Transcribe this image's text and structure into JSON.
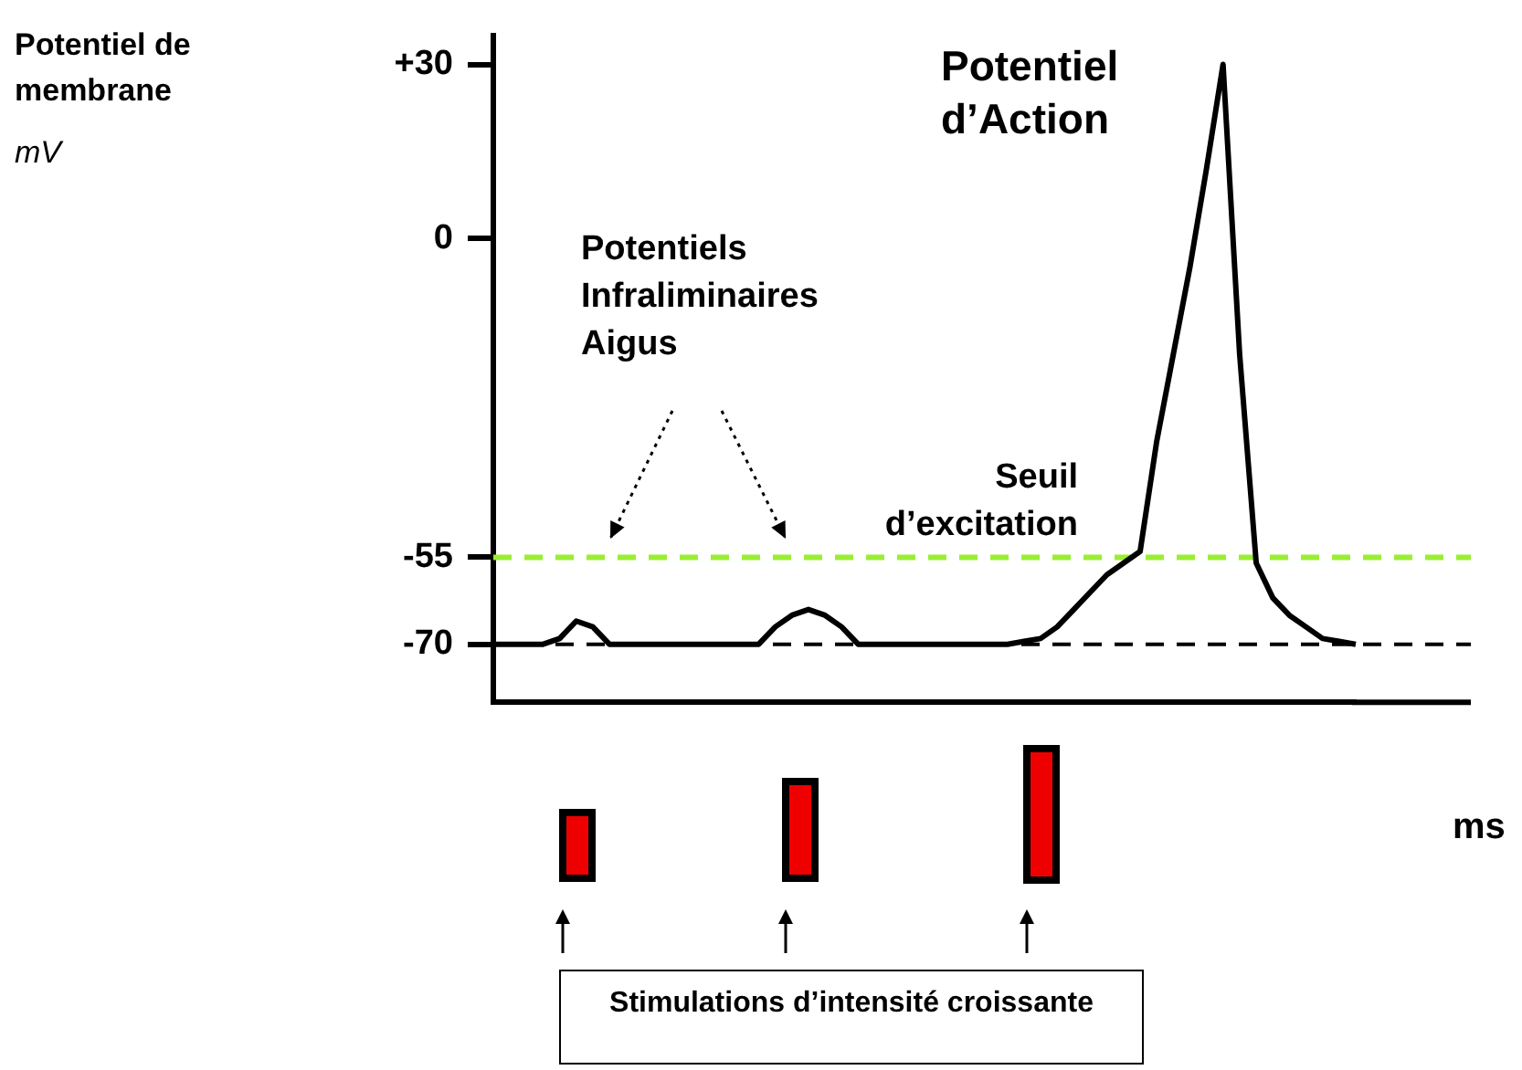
{
  "chart_data": {
    "type": "line",
    "categories": [
      null,
      null,
      null,
      null,
      null,
      null,
      null,
      null,
      null,
      null,
      null,
      null,
      null,
      null,
      null,
      null,
      null,
      null,
      null,
      null,
      null,
      null,
      null,
      null,
      null,
      null,
      null,
      null,
      null,
      null,
      null,
      null,
      null,
      null,
      null,
      null,
      null,
      null,
      null,
      null,
      null,
      null,
      null,
      null,
      null,
      null,
      null,
      null,
      null,
      null,
      null,
      null,
      null
    ],
    "series": [
      {
        "color": "#000000",
        "values": [
          -70,
          -70,
          -70,
          -70,
          -69,
          -66,
          -67,
          -70,
          -70,
          -70,
          -70,
          -70,
          -70,
          -70,
          -70,
          -70,
          -70,
          -67,
          -65,
          -64,
          -65,
          -67,
          -70,
          -70,
          -70,
          -70,
          -70,
          -70,
          -70,
          -70,
          -70,
          -70,
          -69.5,
          -69,
          -67,
          -64,
          -61,
          -58,
          -56,
          -54,
          -35,
          -20,
          -5,
          12,
          30,
          -20,
          -56,
          -62,
          -65,
          -67,
          -69,
          -69.5,
          -70
        ]
      }
    ],
    "ylim": [
      -80,
      35
    ],
    "yticks": [
      {
        "value": 30,
        "label": "+30"
      },
      0,
      -55,
      -70
    ],
    "grid": false,
    "legend": false,
    "marker": "none",
    "line_style": "solid",
    "ref_lines": [
      {
        "axis": "y",
        "value": -55,
        "label": "Seuil d’excitation",
        "color": "#99ee33",
        "line_style": "dashed"
      },
      {
        "axis": "y",
        "value": -70,
        "label": null,
        "color": "#000000",
        "line_style": "dashed"
      }
    ],
    "annotations": [
      "Potentiel d’Action",
      "Potentiels Infraliminaires Aigus",
      "Stimulations d’intensité croissante",
      "Potentiel de membrane",
      "mV",
      "ms"
    ]
  }
}
